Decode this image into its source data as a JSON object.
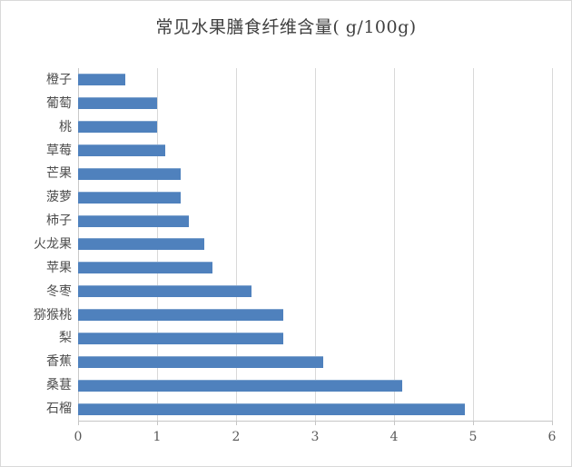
{
  "window": {
    "background_color": "#ffffff",
    "border_color": "#d9d9d9"
  },
  "chart_data": {
    "type": "bar",
    "orientation": "horizontal",
    "title": "常见水果膳食纤维含量( g/100g)",
    "categories": [
      "橙子",
      "葡萄",
      "桃",
      "草莓",
      "芒果",
      "菠萝",
      "柿子",
      "火龙果",
      "苹果",
      "冬枣",
      "猕猴桃",
      "梨",
      "香蕉",
      "桑葚",
      "石榴"
    ],
    "values": [
      0.6,
      1.0,
      1.0,
      1.1,
      1.3,
      1.3,
      1.4,
      1.6,
      1.7,
      2.2,
      2.6,
      2.6,
      3.1,
      4.1,
      4.9
    ],
    "xlabel": "",
    "ylabel": "",
    "xlim": [
      0,
      6
    ],
    "x_ticks": [
      0,
      1,
      2,
      3,
      4,
      5,
      6
    ],
    "grid": "vertical-gridlines-on",
    "legend": "none",
    "bar_color": "#4f81bd",
    "bar_highlight_color": "#7da2cd",
    "gridline_color": "#d9d9d9",
    "axis_line_color": "#c6c6c6",
    "tick_label_color": "#595959",
    "category_label_color": "#4d4d4d",
    "title_color": "#3f3f3f"
  }
}
